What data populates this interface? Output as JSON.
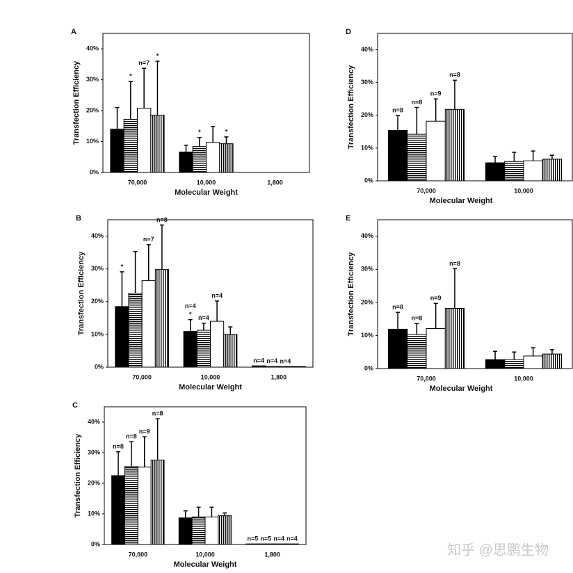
{
  "chart_data": [
    {
      "type": "bar",
      "label": "A",
      "ylabel": "Transfection Efficiency",
      "xlabel": "Molecular Weight",
      "categories": [
        "70,000",
        "10,000",
        "1,800"
      ],
      "ylim": [
        0,
        45
      ],
      "yticks": [
        {
          "value": 0,
          "label": "0%"
        },
        {
          "value": 10,
          "label": "10%"
        },
        {
          "value": 20,
          "label": "20%"
        },
        {
          "value": 30,
          "label": "30%"
        },
        {
          "value": 40,
          "label": "40%"
        }
      ],
      "series": [
        {
          "color": "#000000",
          "pattern": "solid",
          "values": [
            14,
            6.6,
            null
          ],
          "errors": [
            7,
            2.2,
            null
          ]
        },
        {
          "color": "#000000",
          "pattern": "horizontal",
          "values": [
            17.2,
            8.4,
            null
          ],
          "errors": [
            12.2,
            2.9,
            null
          ],
          "annotations": [
            "*",
            "*",
            null
          ]
        },
        {
          "color": "#000000",
          "pattern": "none",
          "values": [
            20.8,
            9.7,
            null
          ],
          "errors": [
            12.9,
            5.2,
            null
          ],
          "annotations": [
            "n=7",
            null,
            null
          ]
        },
        {
          "color": "#000000",
          "pattern": "vertical",
          "values": [
            18.5,
            9.3,
            null
          ],
          "errors": [
            17.5,
            2.2,
            null
          ],
          "annotations": [
            "*",
            "*",
            null
          ]
        }
      ]
    },
    {
      "type": "bar",
      "label": "B",
      "ylabel": "Transfection Efficiency",
      "xlabel": "Molecular Weight",
      "categories": [
        "70,000",
        "10,000",
        "1,800"
      ],
      "ylim": [
        0,
        45
      ],
      "yticks": [
        {
          "value": 0,
          "label": "0%"
        },
        {
          "value": 10,
          "label": "10%"
        },
        {
          "value": 20,
          "label": "20%"
        },
        {
          "value": 30,
          "label": "30%"
        },
        {
          "value": 40,
          "label": "40%"
        }
      ],
      "series": [
        {
          "color": "#000000",
          "pattern": "solid",
          "values": [
            18.5,
            10.9,
            0.4
          ],
          "errors": [
            10.6,
            3.6,
            null
          ],
          "annotations": [
            "*",
            [
              "*",
              "n=4"
            ],
            "n=4"
          ]
        },
        {
          "color": "#000000",
          "pattern": "horizontal",
          "values": [
            22.6,
            11.3,
            0.3
          ],
          "errors": [
            12.7,
            2.1,
            null
          ],
          "annotations": [
            null,
            "n=4",
            "n=4"
          ]
        },
        {
          "color": "#000000",
          "pattern": "none",
          "values": [
            26.4,
            14,
            0.2
          ],
          "errors": [
            11,
            6.2,
            null
          ],
          "annotations": [
            "n=7",
            "n=4",
            "n=4"
          ]
        },
        {
          "color": "#000000",
          "pattern": "vertical",
          "values": [
            29.8,
            10,
            0.2
          ],
          "errors": [
            13.6,
            2.3,
            null
          ],
          "annotations": [
            "n=8",
            null,
            null
          ]
        }
      ]
    },
    {
      "type": "bar",
      "label": "C",
      "ylabel": "Transfection Efficiency",
      "xlabel": "Molecular Weight",
      "categories": [
        "70,000",
        "10,000",
        "1,800"
      ],
      "ylim": [
        0,
        45
      ],
      "yticks": [
        {
          "value": 0,
          "label": "0%"
        },
        {
          "value": 10,
          "label": "10%"
        },
        {
          "value": 20,
          "label": "20%"
        },
        {
          "value": 30,
          "label": "30%"
        },
        {
          "value": 40,
          "label": "40%"
        }
      ],
      "series": [
        {
          "color": "#000000",
          "pattern": "solid",
          "values": [
            22.5,
            8.7,
            0.2
          ],
          "errors": [
            7.8,
            2.3,
            null
          ],
          "annotations": [
            "n=8",
            null,
            "n=5"
          ]
        },
        {
          "color": "#000000",
          "pattern": "horizontal",
          "values": [
            25.5,
            9,
            0.2
          ],
          "errors": [
            8.1,
            3.2,
            null
          ],
          "annotations": [
            "n=8",
            null,
            "n=5"
          ]
        },
        {
          "color": "#000000",
          "pattern": "none",
          "values": [
            25.3,
            9,
            0.2
          ],
          "errors": [
            9.9,
            3.2,
            null
          ],
          "annotations": [
            "n=9",
            null,
            "n=4"
          ]
        },
        {
          "color": "#000000",
          "pattern": "vertical",
          "values": [
            27.6,
            9.4,
            0.2
          ],
          "errors": [
            13.5,
            0.9,
            null
          ],
          "annotations": [
            "n=8",
            null,
            "n=4"
          ]
        }
      ]
    },
    {
      "type": "bar",
      "label": "D",
      "ylabel": "Transfection Efficiency",
      "xlabel": "Molecular Weight",
      "categories": [
        "70,000",
        "10,000"
      ],
      "ylim": [
        0,
        45
      ],
      "yticks": [
        {
          "value": 0,
          "label": "0%"
        },
        {
          "value": 10,
          "label": "10%"
        },
        {
          "value": 20,
          "label": "20%"
        },
        {
          "value": 30,
          "label": "30%"
        },
        {
          "value": 40,
          "label": "40%"
        }
      ],
      "series": [
        {
          "color": "#000000",
          "pattern": "solid",
          "values": [
            15.4,
            5.5
          ],
          "errors": [
            4.5,
            1.9
          ],
          "annotations": [
            "n=8",
            null
          ]
        },
        {
          "color": "#000000",
          "pattern": "horizontal",
          "values": [
            14.2,
            5.9
          ],
          "errors": [
            8.2,
            2.8
          ],
          "annotations": [
            "n=8",
            null
          ]
        },
        {
          "color": "#000000",
          "pattern": "none",
          "values": [
            18.2,
            6.1
          ],
          "errors": [
            6.8,
            3
          ],
          "annotations": [
            "n=9",
            null
          ]
        },
        {
          "color": "#000000",
          "pattern": "vertical",
          "values": [
            21.8,
            6.6
          ],
          "errors": [
            8.9,
            1.2
          ],
          "annotations": [
            "n=8",
            null
          ]
        }
      ]
    },
    {
      "type": "bar",
      "label": "E",
      "ylabel": "Transfection Efficiency",
      "xlabel": "Molecular Weight",
      "categories": [
        "70,000",
        "10,000"
      ],
      "ylim": [
        0,
        45
      ],
      "yticks": [
        {
          "value": 0,
          "label": "0%"
        },
        {
          "value": 10,
          "label": "10%"
        },
        {
          "value": 20,
          "label": "20%"
        },
        {
          "value": 30,
          "label": "30%"
        },
        {
          "value": 40,
          "label": "40%"
        }
      ],
      "series": [
        {
          "color": "#000000",
          "pattern": "solid",
          "values": [
            11.9,
            2.7
          ],
          "errors": [
            5.1,
            2.5
          ],
          "annotations": [
            "n=8",
            null
          ]
        },
        {
          "color": "#000000",
          "pattern": "horizontal",
          "values": [
            10.3,
            2.7
          ],
          "errors": [
            3.3,
            2.3
          ],
          "annotations": [
            "n=8",
            null
          ]
        },
        {
          "color": "#000000",
          "pattern": "none",
          "values": [
            12.1,
            3.8
          ],
          "errors": [
            7.6,
            2.5
          ],
          "annotations": [
            "n=9",
            null
          ]
        },
        {
          "color": "#000000",
          "pattern": "vertical",
          "values": [
            18.2,
            4.4
          ],
          "errors": [
            12,
            1.3
          ],
          "annotations": [
            "n=8",
            null
          ]
        }
      ]
    }
  ],
  "watermark": "知乎 @思鹏生物"
}
